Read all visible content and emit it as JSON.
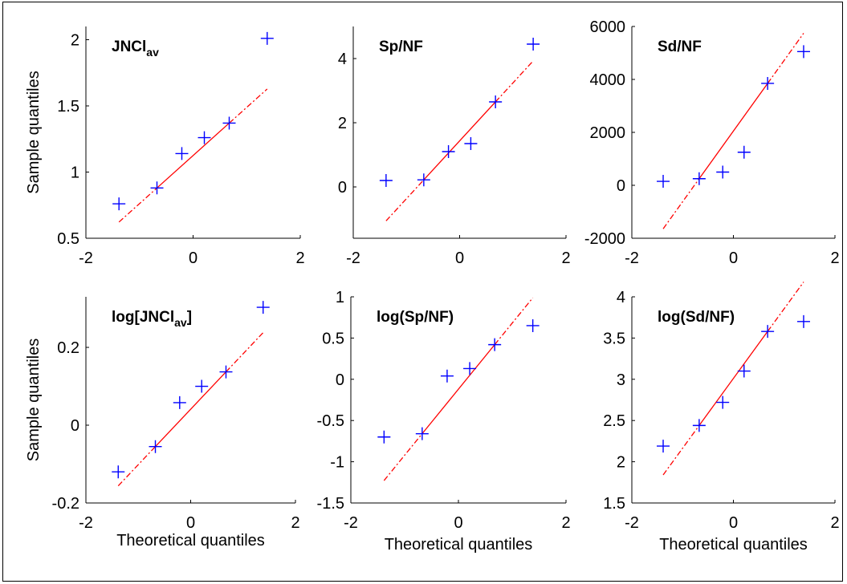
{
  "colors": {
    "marker": "#0000ff",
    "fit_line": "#ff0000",
    "axis": "#000000"
  },
  "chart_data": [
    {
      "type": "scatter",
      "title": "JNCl",
      "title_sub": "av",
      "xlabel": "",
      "ylabel": "Sample quantiles",
      "xlim": [
        -2,
        2
      ],
      "ylim": [
        0.5,
        2.1
      ],
      "xticks": [
        -2,
        0,
        2
      ],
      "yticks": [
        0.5,
        1,
        1.5,
        2
      ],
      "x": [
        -1.383,
        -0.674,
        -0.21,
        0.21,
        0.674,
        1.383
      ],
      "y": [
        0.76,
        0.88,
        1.14,
        1.26,
        1.37,
        2.01
      ],
      "fit": {
        "q1": [
          -0.674,
          0.88
        ],
        "q3": [
          0.674,
          1.37
        ]
      },
      "grid": false
    },
    {
      "type": "scatter",
      "title": "Sp/NF",
      "title_sub": "",
      "xlabel": "",
      "ylabel": "",
      "xlim": [
        -2,
        2
      ],
      "ylim": [
        -1.6,
        5
      ],
      "xticks": [
        -2,
        0,
        2
      ],
      "yticks": [
        0,
        2,
        4
      ],
      "x": [
        -1.383,
        -0.674,
        -0.21,
        0.21,
        0.674,
        1.383
      ],
      "y": [
        0.2,
        0.22,
        1.1,
        1.35,
        2.65,
        4.45
      ],
      "fit": {
        "q1": [
          -0.674,
          0.22
        ],
        "q3": [
          0.674,
          2.65
        ]
      },
      "grid": false
    },
    {
      "type": "scatter",
      "title": "Sd/NF",
      "title_sub": "",
      "xlabel": "",
      "ylabel": "",
      "xlim": [
        -2,
        2
      ],
      "ylim": [
        -2000,
        6000
      ],
      "xticks": [
        -2,
        0,
        2
      ],
      "yticks": [
        -2000,
        0,
        2000,
        4000,
        6000
      ],
      "x": [
        -1.383,
        -0.674,
        -0.21,
        0.21,
        0.674,
        1.383
      ],
      "y": [
        150,
        250,
        500,
        1250,
        3850,
        5050
      ],
      "fit": {
        "q1": [
          -0.674,
          250
        ],
        "q3": [
          0.674,
          3850
        ]
      },
      "grid": false
    },
    {
      "type": "scatter",
      "title": "log[JNCl",
      "title_sub": "av",
      "title_end": "]",
      "xlabel": "Theoretical quantiles",
      "ylabel": "Sample quantiles",
      "xlim": [
        -2,
        2
      ],
      "ylim": [
        -0.2,
        0.33
      ],
      "xticks": [
        -2,
        0,
        2
      ],
      "yticks": [
        -0.2,
        0,
        0.2
      ],
      "x": [
        -1.383,
        -0.674,
        -0.21,
        0.21,
        0.674,
        1.383
      ],
      "y": [
        -0.12,
        -0.055,
        0.058,
        0.1,
        0.137,
        0.303
      ],
      "fit": {
        "q1": [
          -0.674,
          -0.055
        ],
        "q3": [
          0.674,
          0.137
        ]
      },
      "grid": false
    },
    {
      "type": "scatter",
      "title": "log(Sp/NF)",
      "title_sub": "",
      "xlabel": "Theoretical quantiles",
      "ylabel": "",
      "xlim": [
        -2,
        2
      ],
      "ylim": [
        -1.5,
        1
      ],
      "xticks": [
        -2,
        0,
        2
      ],
      "yticks": [
        -1.5,
        -1,
        -0.5,
        0,
        0.5,
        1
      ],
      "x": [
        -1.383,
        -0.674,
        -0.21,
        0.21,
        0.674,
        1.383
      ],
      "y": [
        -0.7,
        -0.66,
        0.04,
        0.13,
        0.42,
        0.65
      ],
      "fit": {
        "q1": [
          -0.674,
          -0.66
        ],
        "q3": [
          0.674,
          0.42
        ]
      },
      "grid": false
    },
    {
      "type": "scatter",
      "title": "log(Sd/NF)",
      "title_sub": "",
      "xlabel": "Theoretical quantiles",
      "ylabel": "",
      "xlim": [
        -2,
        2
      ],
      "ylim": [
        1.5,
        4
      ],
      "xticks": [
        -2,
        0,
        2
      ],
      "yticks": [
        1.5,
        2,
        2.5,
        3,
        3.5,
        4
      ],
      "x": [
        -1.383,
        -0.674,
        -0.21,
        0.21,
        0.674,
        1.383
      ],
      "y": [
        2.19,
        2.44,
        2.72,
        3.1,
        3.58,
        3.7
      ],
      "fit": {
        "q1": [
          -0.674,
          2.44
        ],
        "q3": [
          0.674,
          3.58
        ]
      },
      "grid": false
    }
  ]
}
